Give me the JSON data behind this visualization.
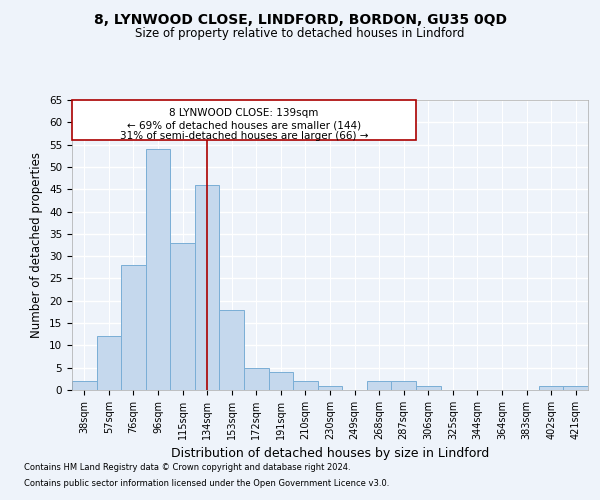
{
  "title1": "8, LYNWOOD CLOSE, LINDFORD, BORDON, GU35 0QD",
  "title2": "Size of property relative to detached houses in Lindford",
  "xlabel": "Distribution of detached houses by size in Lindford",
  "ylabel": "Number of detached properties",
  "categories": [
    "38sqm",
    "57sqm",
    "76sqm",
    "96sqm",
    "115sqm",
    "134sqm",
    "153sqm",
    "172sqm",
    "191sqm",
    "210sqm",
    "230sqm",
    "249sqm",
    "268sqm",
    "287sqm",
    "306sqm",
    "325sqm",
    "344sqm",
    "364sqm",
    "383sqm",
    "402sqm",
    "421sqm"
  ],
  "values": [
    2,
    12,
    28,
    54,
    33,
    46,
    18,
    5,
    4,
    2,
    1,
    0,
    2,
    2,
    1,
    0,
    0,
    0,
    0,
    1,
    1
  ],
  "bar_color": "#c5d8ed",
  "bar_edge_color": "#7aaed6",
  "annotation_line1": "8 LYNWOOD CLOSE: 139sqm",
  "annotation_line2": "← 69% of detached houses are smaller (144)",
  "annotation_line3": "31% of semi-detached houses are larger (66) →",
  "vline_color": "#aa0000",
  "box_edge_color": "#aa0000",
  "background_color": "#eef3fa",
  "plot_bg_color": "#eef3fa",
  "grid_color": "#ffffff",
  "ylim": [
    0,
    65
  ],
  "yticks": [
    0,
    5,
    10,
    15,
    20,
    25,
    30,
    35,
    40,
    45,
    50,
    55,
    60,
    65
  ],
  "footnote1": "Contains HM Land Registry data © Crown copyright and database right 2024.",
  "footnote2": "Contains public sector information licensed under the Open Government Licence v3.0."
}
